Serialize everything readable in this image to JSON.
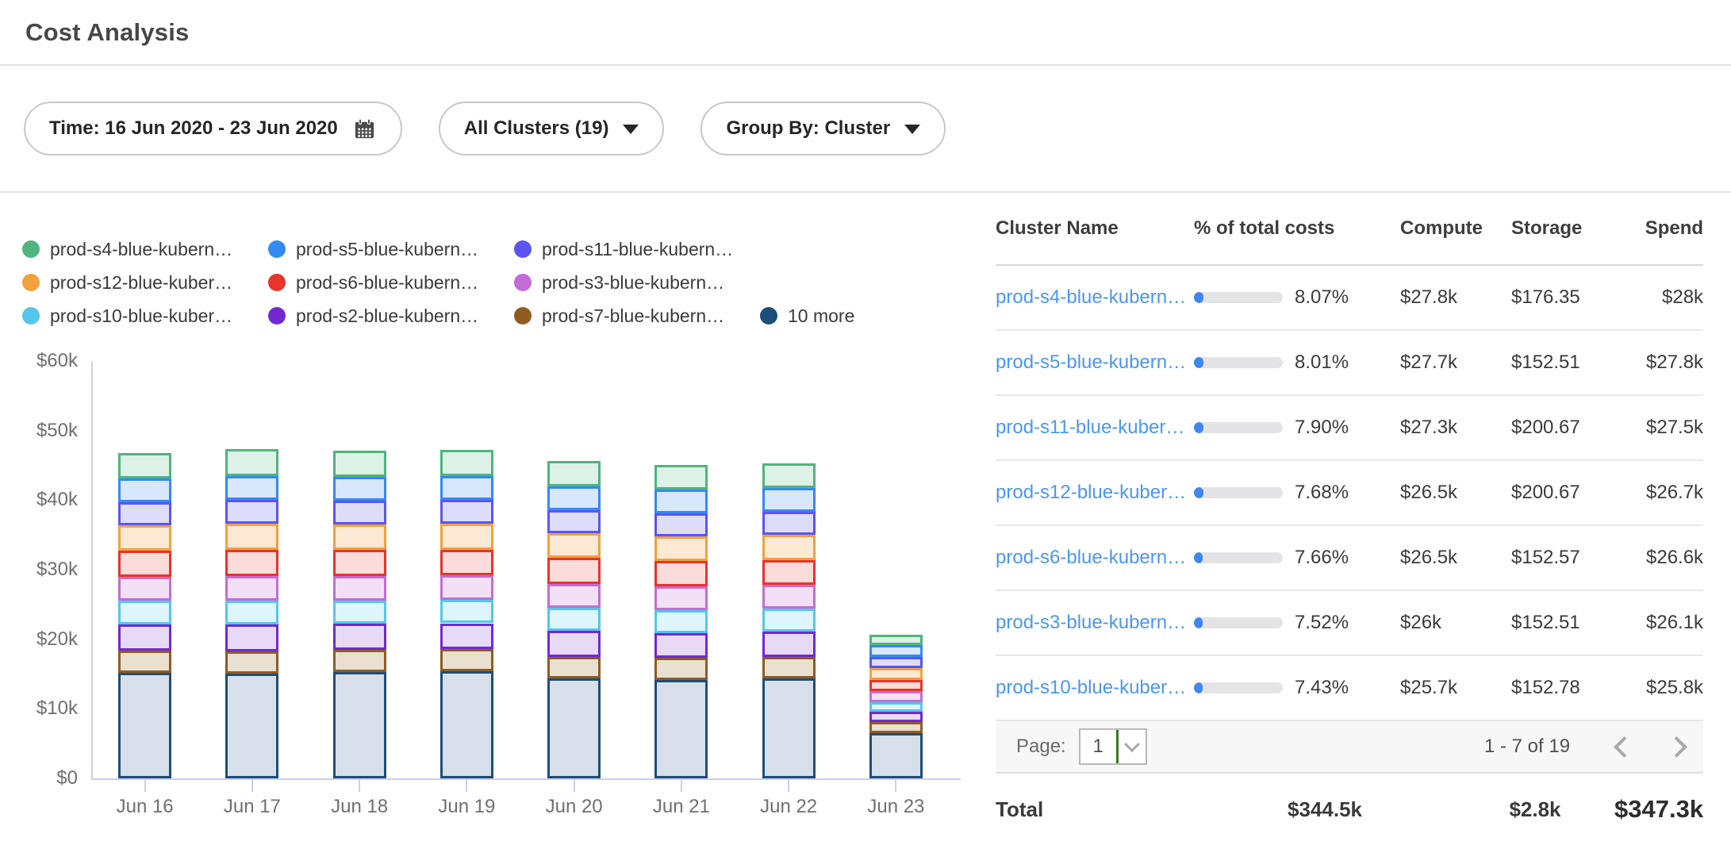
{
  "page": {
    "title": "Cost Analysis"
  },
  "filters": {
    "time_label": "Time: 16 Jun 2020 - 23 Jun 2020",
    "clusters_label": "All Clusters (19)",
    "group_by_label": "Group By: Cluster"
  },
  "icons": {
    "time_pill": "calendar-icon",
    "dropdowns": "triangle-down-icon",
    "page_select": "chevron-down-icon",
    "pagination": [
      "chevron-left-icon",
      "chevron-right-icon"
    ]
  },
  "colors": {
    "link_blue": "#4b96f3",
    "progress_fill": "#3f87ee",
    "progress_track": "#e4e4e7",
    "axis_line": "#c9d1e8",
    "select_divider_green": "#367a1f"
  },
  "chart_data": {
    "type": "bar",
    "stacked": true,
    "title": "",
    "xlabel": "",
    "ylabel": "",
    "unit": "$k (USD thousands per day)",
    "ylim": [
      0,
      60000
    ],
    "ytick_labels": [
      "$0",
      "$10k",
      "$20k",
      "$30k",
      "$40k",
      "$50k",
      "$60k"
    ],
    "grid": false,
    "legend_position": "top-left",
    "legend_rows": [
      [
        0,
        1,
        2
      ],
      [
        3,
        4,
        5
      ],
      [
        6,
        7,
        8,
        9
      ]
    ],
    "x": [
      "Jun 16",
      "Jun 17",
      "Jun 18",
      "Jun 19",
      "Jun 20",
      "Jun 21",
      "Jun 22",
      "Jun 23"
    ],
    "stack_order_note": "first series renders on top of stack; last series (10 more) is the bottom segment",
    "series": [
      {
        "name": "prod-s4-blue-kubern…",
        "color": "#4fb47e",
        "fill": "#ddf1e6",
        "values": [
          3.7,
          3.8,
          3.7,
          3.7,
          3.6,
          3.6,
          3.6,
          1.5
        ]
      },
      {
        "name": "prod-s5-blue-kubern…",
        "color": "#338af2",
        "fill": "#d8e7fc",
        "values": [
          3.4,
          3.5,
          3.5,
          3.5,
          3.4,
          3.4,
          3.4,
          1.8
        ]
      },
      {
        "name": "prod-s11-blue-kubern…",
        "color": "#5a55f2",
        "fill": "#ddddfa",
        "values": [
          3.3,
          3.4,
          3.4,
          3.4,
          3.3,
          3.3,
          3.3,
          1.6
        ]
      },
      {
        "name": "prod-s12-blue-kuber…",
        "color": "#f2a13d",
        "fill": "#fbe9d4",
        "values": [
          3.7,
          3.7,
          3.7,
          3.7,
          3.6,
          3.6,
          3.6,
          1.6
        ]
      },
      {
        "name": "prod-s6-blue-kubern…",
        "color": "#e8342a",
        "fill": "#fadcda",
        "values": [
          3.7,
          3.8,
          3.7,
          3.7,
          3.7,
          3.6,
          3.6,
          1.7
        ]
      },
      {
        "name": "prod-s3-blue-kubern…",
        "color": "#c16dd4",
        "fill": "#f1e0f6",
        "values": [
          3.5,
          3.6,
          3.5,
          3.5,
          3.5,
          3.4,
          3.4,
          1.6
        ]
      },
      {
        "name": "prod-s10-blue-kuber…",
        "color": "#54c6ea",
        "fill": "#def5fc",
        "values": [
          3.4,
          3.4,
          3.4,
          3.4,
          3.3,
          3.3,
          3.3,
          1.3
        ]
      },
      {
        "name": "prod-s2-blue-kubern…",
        "color": "#7229d1",
        "fill": "#e7daf6",
        "values": [
          3.7,
          3.8,
          3.7,
          3.7,
          3.7,
          3.6,
          3.6,
          1.5
        ]
      },
      {
        "name": "prod-s7-blue-kubern…",
        "color": "#8f5c20",
        "fill": "#e9e0d2",
        "values": [
          3.2,
          3.2,
          3.2,
          3.2,
          3.1,
          3.1,
          3.1,
          1.6
        ]
      },
      {
        "name": "10 more",
        "color": "#1d4e79",
        "fill": "#d7e0ea",
        "values": [
          15.2,
          15.1,
          15.3,
          15.4,
          14.4,
          14.2,
          14.4,
          6.5
        ]
      }
    ]
  },
  "table": {
    "columns": [
      "Cluster Name",
      "% of total costs",
      "Compute",
      "Storage",
      "Spend"
    ],
    "rows": [
      {
        "name": "prod-s4-blue-kubern…",
        "pct": "8.07%",
        "pct_value": 8.07,
        "compute": "$27.8k",
        "storage": "$176.35",
        "spend": "$28k"
      },
      {
        "name": "prod-s5-blue-kubern…",
        "pct": "8.01%",
        "pct_value": 8.01,
        "compute": "$27.7k",
        "storage": "$152.51",
        "spend": "$27.8k"
      },
      {
        "name": "prod-s11-blue-kuber…",
        "pct": "7.90%",
        "pct_value": 7.9,
        "compute": "$27.3k",
        "storage": "$200.67",
        "spend": "$27.5k"
      },
      {
        "name": "prod-s12-blue-kuber…",
        "pct": "7.68%",
        "pct_value": 7.68,
        "compute": "$26.5k",
        "storage": "$200.67",
        "spend": "$26.7k"
      },
      {
        "name": "prod-s6-blue-kubern…",
        "pct": "7.66%",
        "pct_value": 7.66,
        "compute": "$26.5k",
        "storage": "$152.57",
        "spend": "$26.6k"
      },
      {
        "name": "prod-s3-blue-kubern…",
        "pct": "7.52%",
        "pct_value": 7.52,
        "compute": "$26k",
        "storage": "$152.51",
        "spend": "$26.1k"
      },
      {
        "name": "prod-s10-blue-kuber…",
        "pct": "7.43%",
        "pct_value": 7.43,
        "compute": "$25.7k",
        "storage": "$152.78",
        "spend": "$25.8k"
      }
    ],
    "pagination": {
      "label": "Page:",
      "page": "1",
      "range": "1 - 7 of 19"
    },
    "total": {
      "label": "Total",
      "compute": "$344.5k",
      "storage": "$2.8k",
      "spend": "$347.3k"
    }
  }
}
